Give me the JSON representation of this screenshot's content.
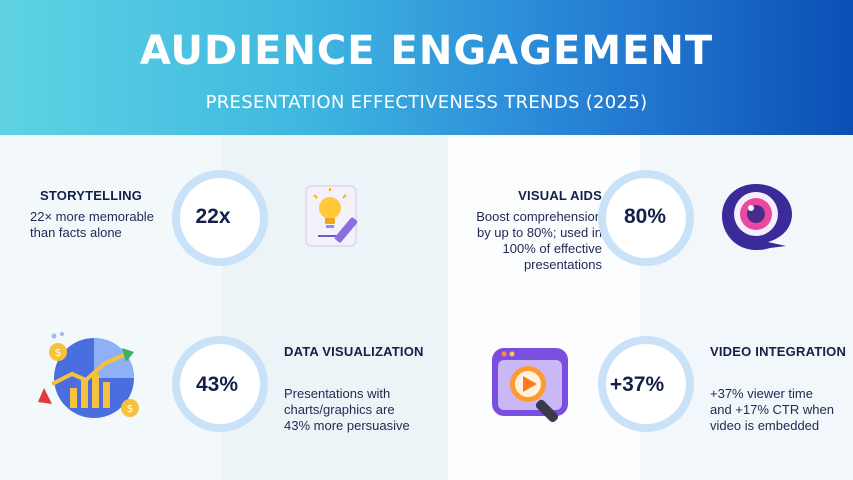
{
  "header": {
    "title": "AUDIENCE ENGAGEMENT",
    "subtitle": "PRESENTATION EFFECTIVENESS TRENDS (2025)"
  },
  "cards": {
    "storytelling": {
      "heading": "STORYTELLING",
      "desc_lines": [
        "22× more memorable",
        "than facts alone"
      ],
      "stat": "22x",
      "icon": "lightbulb-pencil-icon"
    },
    "visual_aids": {
      "heading": "VISUAL AIDS",
      "desc_lines": [
        "Boost comprehension",
        "by up to 80%; used in",
        "100% of effective",
        "presentations"
      ],
      "stat": "80%",
      "icon": "eye-speech-bubble-icon"
    },
    "data_visualization": {
      "heading": "DATA VISUALIZATION",
      "desc_lines": [
        "Presentations with",
        "charts/graphics are",
        "43% more persuasive"
      ],
      "stat": "43%",
      "icon": "chart-coins-icon"
    },
    "video_integration": {
      "heading": "VIDEO INTEGRATION",
      "desc_lines": [
        "+37% viewer time",
        "and +17% CTR when",
        "video is embedded"
      ],
      "stat": "+37%",
      "icon": "video-player-magnifier-icon"
    }
  },
  "colors": {
    "header_start": "#5fd3e3",
    "header_end": "#0b4fb5",
    "ring": "#c9e2f8",
    "text_dark": "#14204a"
  }
}
